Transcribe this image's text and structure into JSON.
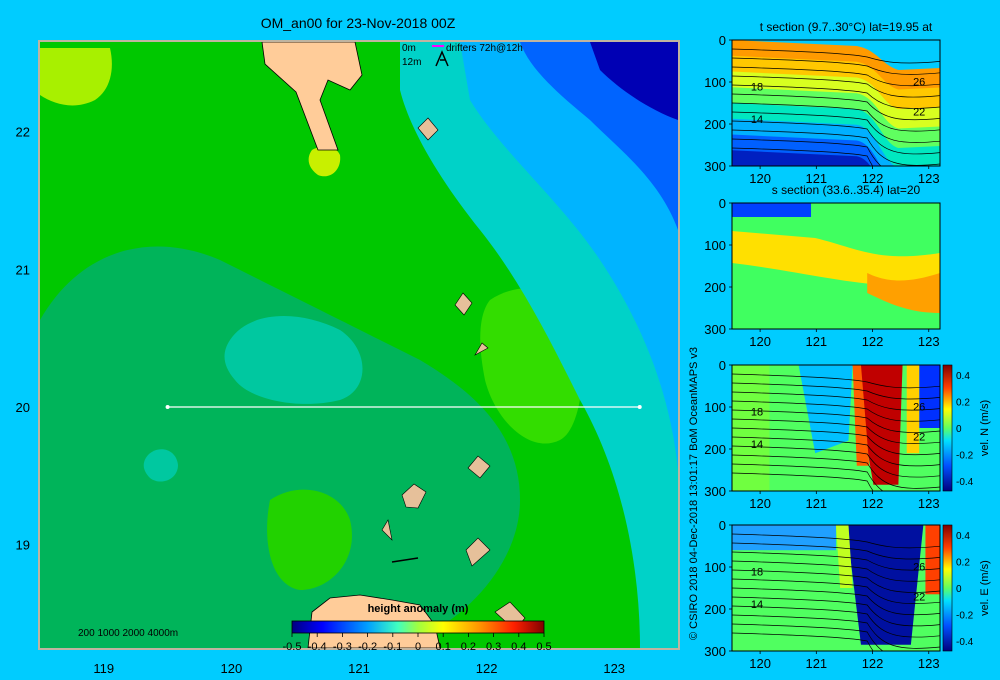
{
  "chart_data": [
    {
      "type": "heatmap",
      "title": "OM_an00 for 23-Nov-2018 00Z",
      "xlabel": "",
      "ylabel": "",
      "xlim": [
        118.5,
        123.5
      ],
      "ylim": [
        18.25,
        22.65
      ],
      "x_ticks": [
        119,
        120,
        121,
        122,
        123
      ],
      "y_ticks": [
        19,
        20,
        21,
        22
      ],
      "x_tick_labels": [
        "119",
        "120",
        "121",
        "122",
        "123"
      ],
      "y_tick_labels": [
        "19",
        "20",
        "21",
        "22"
      ],
      "colorbar": {
        "label": "height anomaly (m)",
        "range": [
          -0.5,
          0.5
        ],
        "ticks": [
          "-0.5",
          "-0.4",
          "-0.3",
          "-0.2",
          "-0.1",
          "0",
          "0.1",
          "0.2",
          "0.3",
          "0.4",
          "0.5"
        ],
        "colors": [
          "#00007f",
          "#0000ff",
          "#007fff",
          "#00ffff",
          "#7fff7f",
          "#ffff00",
          "#ff7f00",
          "#ff0000",
          "#7f0000"
        ]
      },
      "field_levels": [
        {
          "value": 0.1,
          "color": "#00c800"
        },
        {
          "value": 0.07,
          "color": "#33dd00"
        },
        {
          "value": 0.14,
          "color": "#a8f000"
        },
        {
          "value": 0.0,
          "color": "#00b45a"
        },
        {
          "value": -0.04,
          "color": "#00c8a0"
        },
        {
          "value": -0.12,
          "color": "#00d2d2"
        },
        {
          "value": -0.25,
          "color": "#00b4ff"
        },
        {
          "value": -0.35,
          "color": "#0064ff"
        },
        {
          "value": -0.5,
          "color": "#0000b4"
        }
      ],
      "legend_text": {
        "drifter_0m": "0m",
        "drifter_12m": "12m",
        "drifter_label": "drifters 72h@12h",
        "scale_bar": "200  1000  2000  4000m"
      },
      "section_line": {
        "lat": 20,
        "lon_start": 119.5,
        "lon_end": 123.2
      },
      "land_color": "#ffcc99",
      "frame_color": "#c0b4a0"
    },
    {
      "type": "heatmap",
      "title": "t section (9.7..30°C) lat=19.95 at",
      "xlim": [
        119.5,
        123.2
      ],
      "ylim": [
        300,
        0
      ],
      "x_ticks": [
        120,
        121,
        122,
        123
      ],
      "y_ticks": [
        0,
        100,
        200,
        300
      ],
      "contour_labels": [
        "18",
        "14",
        "26",
        "22"
      ],
      "color_range": [
        9.7,
        30
      ]
    },
    {
      "type": "heatmap",
      "title": "s section (33.6..35.4) lat=20",
      "xlim": [
        119.5,
        123.2
      ],
      "ylim": [
        300,
        0
      ],
      "x_ticks": [
        120,
        121,
        122,
        123
      ],
      "y_ticks": [
        0,
        100,
        200,
        300
      ],
      "color_range": [
        33.6,
        35.4
      ]
    },
    {
      "type": "heatmap",
      "title": "",
      "xlim": [
        119.5,
        123.2
      ],
      "ylim": [
        300,
        0
      ],
      "x_ticks": [
        120,
        121,
        122,
        123
      ],
      "y_ticks": [
        0,
        100,
        200,
        300
      ],
      "contour_labels": [
        "18",
        "14",
        "26",
        "22"
      ],
      "colorbar": {
        "label": "vel. N (m/s)",
        "range": [
          -0.4,
          0.4
        ],
        "ticks": [
          "0.4",
          "0.2",
          "0",
          "-0.2",
          "-0.4"
        ]
      }
    },
    {
      "type": "heatmap",
      "title": "",
      "xlim": [
        119.5,
        123.2
      ],
      "ylim": [
        300,
        0
      ],
      "x_ticks": [
        120,
        121,
        122,
        123
      ],
      "y_ticks": [
        0,
        100,
        200,
        300
      ],
      "contour_labels": [
        "18",
        "14",
        "26",
        "22"
      ],
      "colorbar": {
        "label": "vel. E (m/s)",
        "range": [
          -0.4,
          0.4
        ],
        "ticks": [
          "0.4",
          "0.2",
          "0",
          "-0.2",
          "-0.4"
        ]
      }
    }
  ],
  "credit": "© CSIRO 2018  04-Dec-2018 13:01:17 BoM OceanMAPS v3"
}
